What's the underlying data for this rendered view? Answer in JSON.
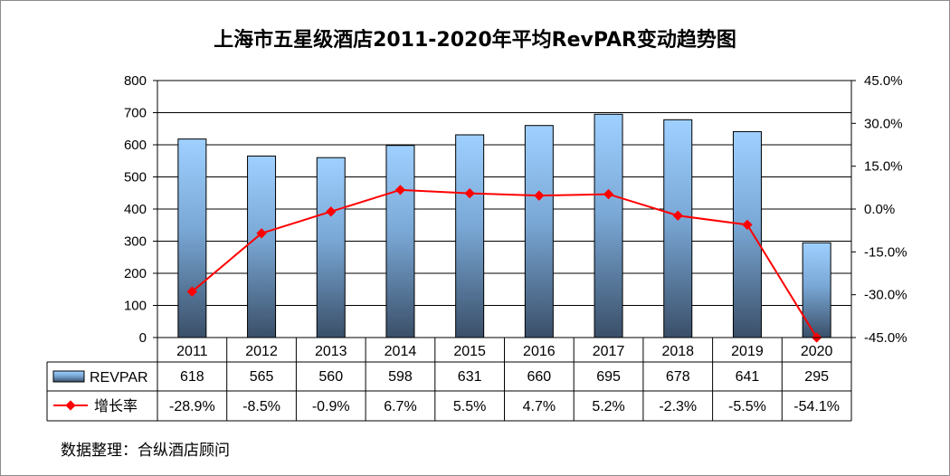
{
  "chart_data": {
    "type": "bar+line",
    "title": "上海市五星级酒店2011-2020年平均RevPAR变动趋势图",
    "categories": [
      "2011",
      "2012",
      "2013",
      "2014",
      "2015",
      "2016",
      "2017",
      "2018",
      "2019",
      "2020"
    ],
    "series": [
      {
        "name": "REVPAR",
        "type": "bar",
        "axis": "left",
        "values": [
          618,
          565,
          560,
          598,
          631,
          660,
          695,
          678,
          641,
          295
        ],
        "labels": [
          "618",
          "565",
          "560",
          "598",
          "631",
          "660",
          "695",
          "678",
          "641",
          "295"
        ]
      },
      {
        "name": "增长率",
        "type": "line",
        "axis": "right",
        "color": "#ff0000",
        "values": [
          -28.9,
          -8.5,
          -0.9,
          6.7,
          5.5,
          4.7,
          5.2,
          -2.3,
          -5.5,
          -54.1
        ],
        "labels": [
          "-28.9%",
          "-8.5%",
          "-0.9%",
          "6.7%",
          "5.5%",
          "4.7%",
          "5.2%",
          "-2.3%",
          "-5.5%",
          "-54.1%"
        ]
      }
    ],
    "y_left": {
      "min": 0,
      "max": 800,
      "ticks": [
        "0",
        "100",
        "200",
        "300",
        "400",
        "500",
        "600",
        "700",
        "800"
      ]
    },
    "y_right": {
      "min": -45,
      "max": 45,
      "ticks": [
        "-45.0%",
        "-30.0%",
        "-15.0%",
        "0.0%",
        "15.0%",
        "30.0%",
        "45.0%"
      ]
    },
    "grid": true,
    "legend": "data-table-left"
  },
  "source": "数据整理：合纵酒店顾问"
}
